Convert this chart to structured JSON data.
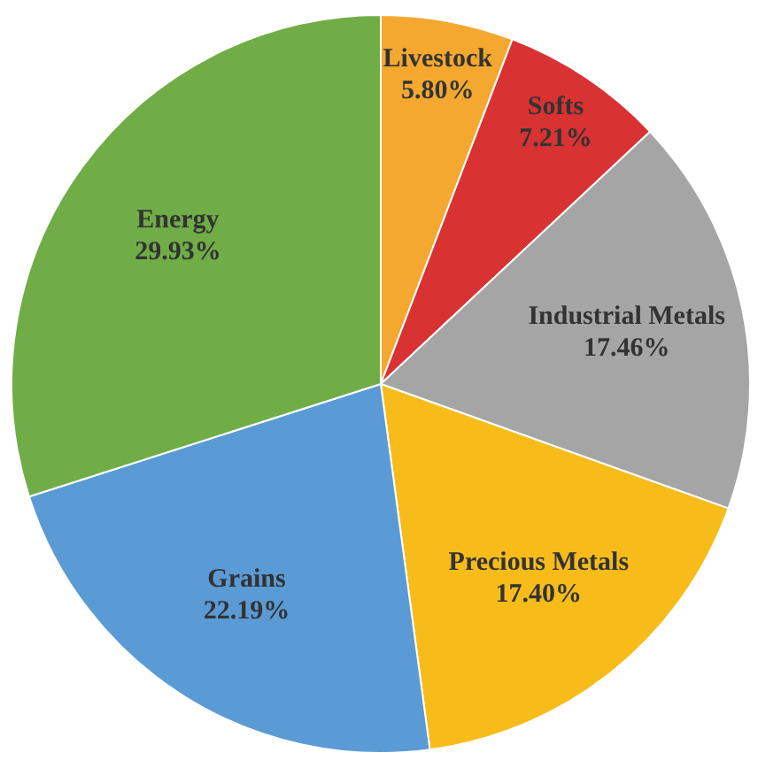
{
  "chart_data": {
    "type": "pie",
    "categories": [
      "Livestock",
      "Softs",
      "Industrial Metals",
      "Precious Metals",
      "Grains",
      "Energy"
    ],
    "values": [
      5.8,
      7.21,
      17.46,
      17.4,
      22.19,
      29.93
    ],
    "value_labels": [
      "5.80%",
      "7.21%",
      "17.46%",
      "17.40%",
      "22.19%",
      "29.93%"
    ],
    "colors": [
      "#f4a830",
      "#d93232",
      "#a5a5a5",
      "#f7bc1a",
      "#5b9bd5",
      "#70ad47"
    ],
    "data_labels": true,
    "legend": false
  }
}
